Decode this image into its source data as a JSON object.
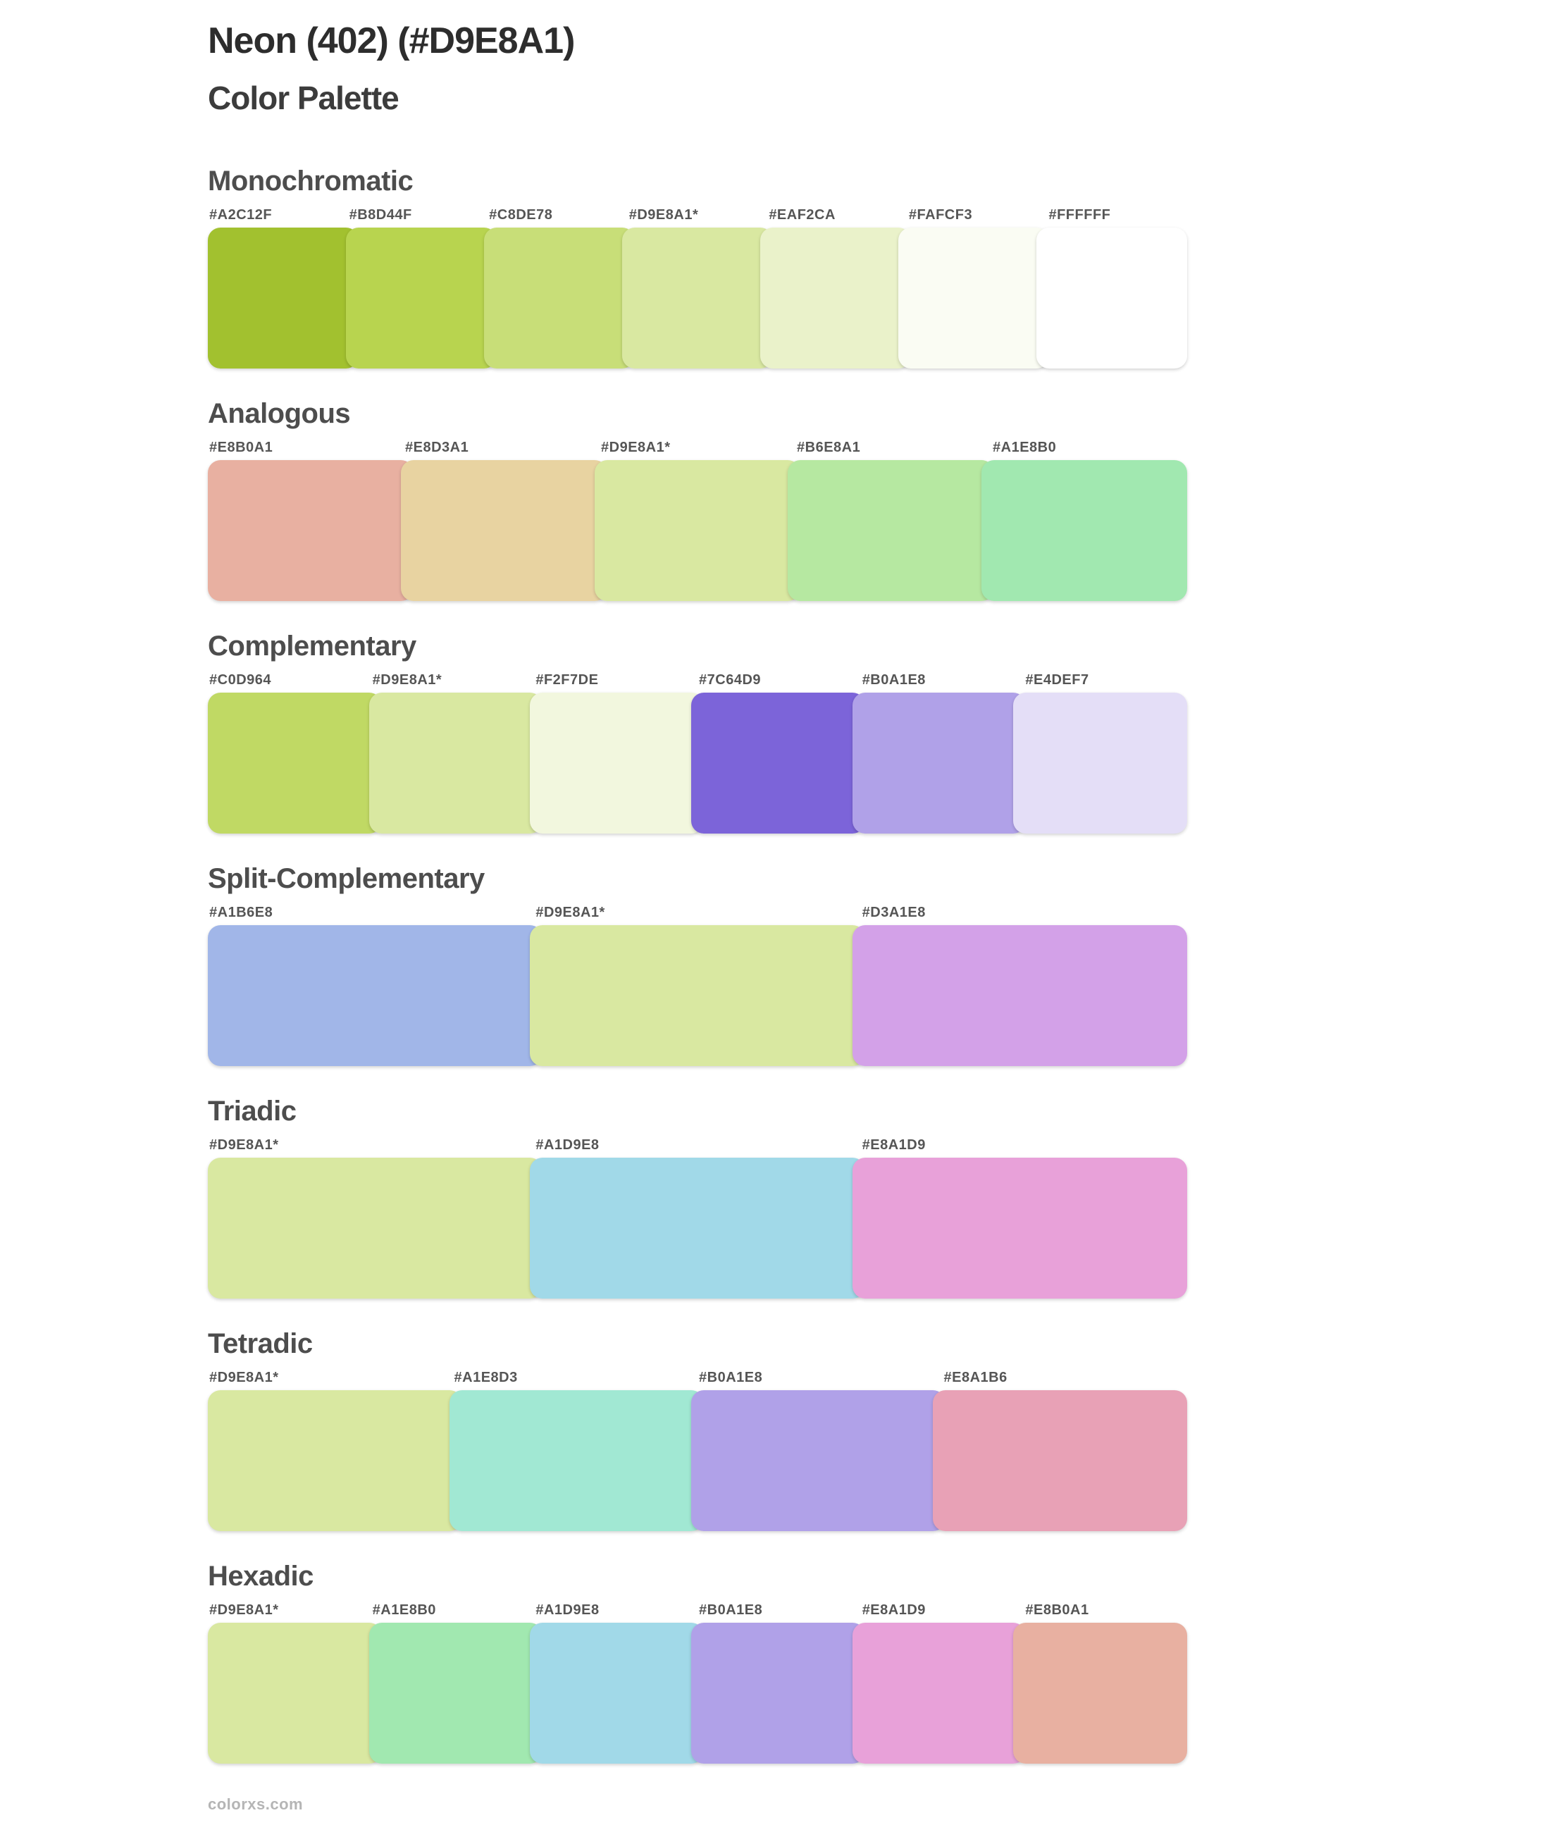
{
  "page": {
    "title": "Neon (402) (#D9E8A1)",
    "subtitle": "Color Palette",
    "footer": "colorxs.com",
    "base_color": "#D9E8A1",
    "background": "#FFFFFF"
  },
  "sections": [
    {
      "name": "Monochromatic",
      "swatches": [
        {
          "label": "#A2C12F",
          "color": "#A2C12F"
        },
        {
          "label": "#B8D44F",
          "color": "#B8D44F"
        },
        {
          "label": "#C8DE78",
          "color": "#C8DE78"
        },
        {
          "label": "#D9E8A1*",
          "color": "#D9E8A1"
        },
        {
          "label": "#EAF2CA",
          "color": "#EAF2CA"
        },
        {
          "label": "#FAFCF3",
          "color": "#FAFCF3"
        },
        {
          "label": "#FFFFFF",
          "color": "#FFFFFF"
        }
      ]
    },
    {
      "name": "Analogous",
      "swatches": [
        {
          "label": "#E8B0A1",
          "color": "#E8B0A1"
        },
        {
          "label": "#E8D3A1",
          "color": "#E8D3A1"
        },
        {
          "label": "#D9E8A1*",
          "color": "#D9E8A1"
        },
        {
          "label": "#B6E8A1",
          "color": "#B6E8A1"
        },
        {
          "label": "#A1E8B0",
          "color": "#A1E8B0"
        }
      ]
    },
    {
      "name": "Complementary",
      "swatches": [
        {
          "label": "#C0D964",
          "color": "#C0D964"
        },
        {
          "label": "#D9E8A1*",
          "color": "#D9E8A1"
        },
        {
          "label": "#F2F7DE",
          "color": "#F2F7DE"
        },
        {
          "label": "#7C64D9",
          "color": "#7C64D9"
        },
        {
          "label": "#B0A1E8",
          "color": "#B0A1E8"
        },
        {
          "label": "#E4DEF7",
          "color": "#E4DEF7"
        }
      ]
    },
    {
      "name": "Split-Complementary",
      "swatches": [
        {
          "label": "#A1B6E8",
          "color": "#A1B6E8"
        },
        {
          "label": "#D9E8A1*",
          "color": "#D9E8A1"
        },
        {
          "label": "#D3A1E8",
          "color": "#D3A1E8"
        }
      ]
    },
    {
      "name": "Triadic",
      "swatches": [
        {
          "label": "#D9E8A1*",
          "color": "#D9E8A1"
        },
        {
          "label": "#A1D9E8",
          "color": "#A1D9E8"
        },
        {
          "label": "#E8A1D9",
          "color": "#E8A1D9"
        }
      ]
    },
    {
      "name": "Tetradic",
      "swatches": [
        {
          "label": "#D9E8A1*",
          "color": "#D9E8A1"
        },
        {
          "label": "#A1E8D3",
          "color": "#A1E8D3"
        },
        {
          "label": "#B0A1E8",
          "color": "#B0A1E8"
        },
        {
          "label": "#E8A1B6",
          "color": "#E8A1B6"
        }
      ]
    },
    {
      "name": "Hexadic",
      "swatches": [
        {
          "label": "#D9E8A1*",
          "color": "#D9E8A1"
        },
        {
          "label": "#A1E8B0",
          "color": "#A1E8B0"
        },
        {
          "label": "#A1D9E8",
          "color": "#A1D9E8"
        },
        {
          "label": "#B0A1E8",
          "color": "#B0A1E8"
        },
        {
          "label": "#E8A1D9",
          "color": "#E8A1D9"
        },
        {
          "label": "#E8B0A1",
          "color": "#E8B0A1"
        }
      ]
    }
  ]
}
